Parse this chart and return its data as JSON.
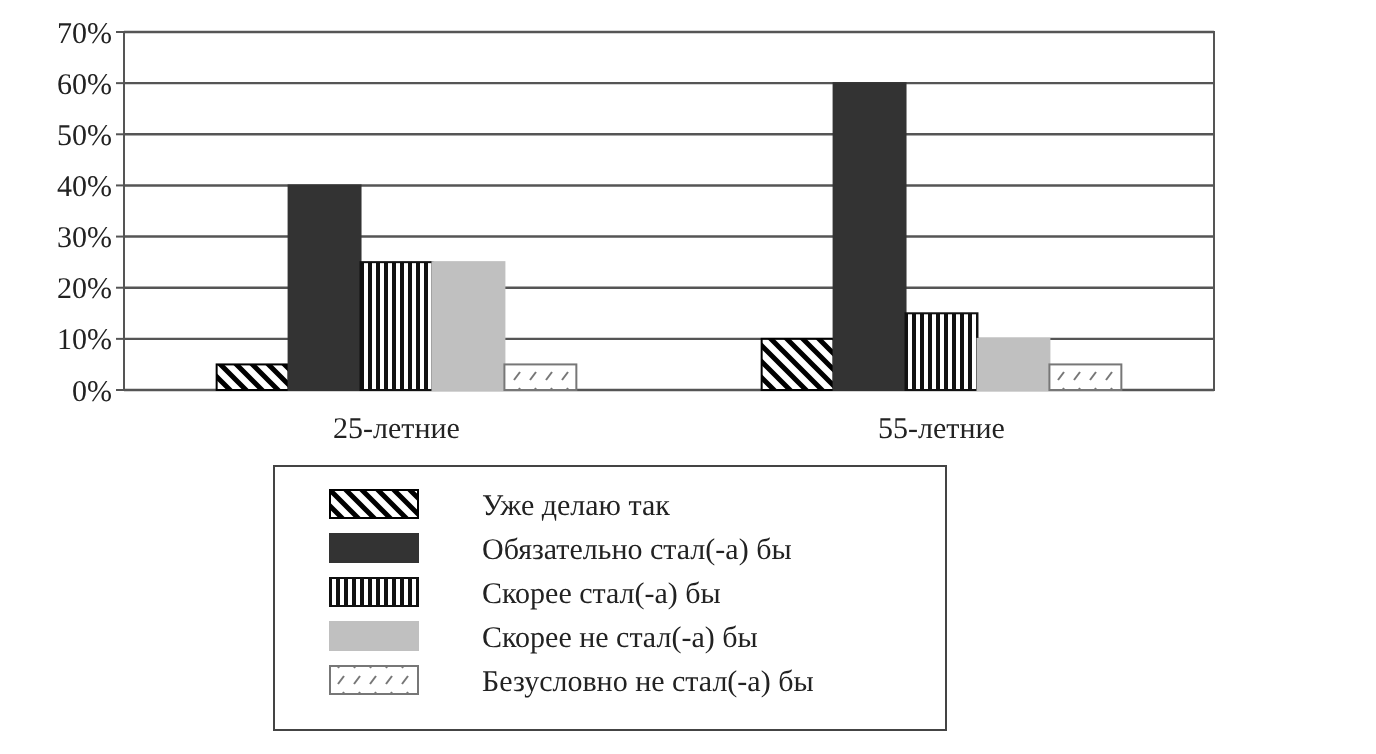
{
  "chart_data": {
    "type": "bar",
    "categories": [
      "25-летние",
      "55-летние"
    ],
    "series": [
      {
        "name": "Уже делаю так",
        "color": "#000000",
        "values": [
          5,
          10
        ]
      },
      {
        "name": "Обязательно стал(-а) бы",
        "color": "#333333",
        "values": [
          40,
          60
        ]
      },
      {
        "name": "Скорее стал(-а) бы",
        "color": "#111111",
        "values": [
          25,
          15
        ]
      },
      {
        "name": "Скорее не стал(-а) бы",
        "color": "#c0c0c0",
        "values": [
          25,
          10
        ]
      },
      {
        "name": "Безусловно не стал(-а) бы",
        "color": "#777777",
        "values": [
          5,
          5
        ]
      }
    ],
    "ylim": [
      0,
      70
    ],
    "yticks": [
      {
        "value": 0,
        "label": "0%"
      },
      {
        "value": 10,
        "label": "10%"
      },
      {
        "value": 20,
        "label": "20%"
      },
      {
        "value": 30,
        "label": "30%"
      },
      {
        "value": 40,
        "label": "40%"
      },
      {
        "value": 50,
        "label": "50%"
      },
      {
        "value": 60,
        "label": "60%"
      },
      {
        "value": 70,
        "label": "70%"
      }
    ],
    "grid": "y",
    "legend": "bottom"
  }
}
